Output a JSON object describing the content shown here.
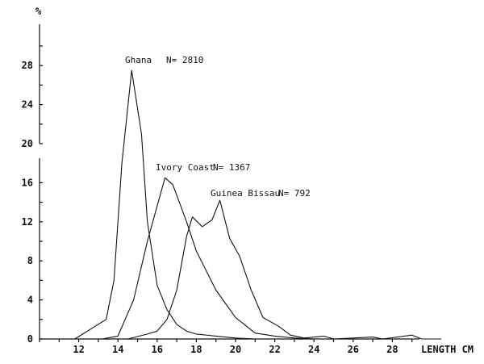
{
  "chart_data": {
    "type": "line",
    "title": "",
    "xlabel": "LENGTH CM",
    "ylabel": "%",
    "xlim": [
      10,
      31
    ],
    "ylim": [
      0,
      30
    ],
    "grid": false,
    "legend": "inline labels near peaks",
    "x_ticks": [
      12,
      14,
      16,
      18,
      20,
      22,
      24,
      26,
      28
    ],
    "x_tick_labels": [
      "12",
      "14",
      "16",
      "18",
      "20",
      "22",
      "24",
      "26",
      "28"
    ],
    "y_ticks": [
      0,
      4,
      8,
      12,
      16,
      20,
      24,
      28
    ],
    "y_tick_labels": [
      "0",
      "4",
      "8",
      "12",
      "16",
      "20",
      "24",
      "28"
    ],
    "axis_break": "between 16 and 20 on y-axis",
    "series": [
      {
        "name": "Ghana",
        "label": "Ghana",
        "n_label": "N= 2810",
        "x": [
          11.8,
          13.4,
          13.8,
          14.2,
          14.7,
          15.2,
          15.5,
          16.0,
          16.5,
          17.0,
          17.5,
          18.0,
          19.0,
          20.0,
          21.0
        ],
        "values": [
          0,
          2,
          6,
          18,
          27.5,
          21,
          12,
          5.5,
          3,
          1.5,
          0.8,
          0.5,
          0.3,
          0.1,
          0
        ]
      },
      {
        "name": "Ivory Coast",
        "label": "Ivory Coast",
        "n_label": "N= 1367",
        "x": [
          13.2,
          14.0,
          14.8,
          15.5,
          16.4,
          16.8,
          17.5,
          18.0,
          19.0,
          20.0,
          21.0,
          22.0,
          23.0,
          24.0
        ],
        "values": [
          0,
          0.3,
          4,
          10,
          16.5,
          15.8,
          12,
          9,
          5,
          2.2,
          0.6,
          0.3,
          0.1,
          0
        ]
      },
      {
        "name": "Guinea Bissau",
        "label": "Guinea Bissau",
        "n_label": "N= 792",
        "x": [
          14.5,
          15.5,
          16.0,
          16.5,
          17.0,
          17.5,
          17.8,
          18.3,
          18.8,
          19.2,
          19.7,
          20.2,
          20.8,
          21.4,
          22.2,
          22.8,
          23.5,
          24.5,
          25.0,
          27.0,
          27.5,
          29.0,
          29.5,
          30.5
        ],
        "values": [
          0,
          0.5,
          0.8,
          2,
          5,
          10.5,
          12.5,
          11.5,
          12.2,
          14.2,
          10.3,
          8.5,
          5,
          2.2,
          1.3,
          0.4,
          0.1,
          0.3,
          0,
          0.2,
          0,
          0.4,
          0,
          0
        ]
      }
    ]
  }
}
